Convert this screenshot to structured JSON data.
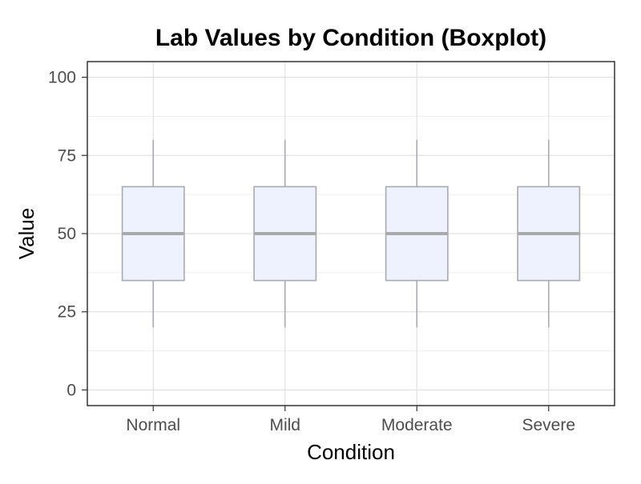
{
  "chart_data": {
    "type": "boxplot",
    "title": "Lab Values by Condition (Boxplot)",
    "xlabel": "Condition",
    "ylabel": "Value",
    "ylim": [
      -5,
      105
    ],
    "yticks": [
      0,
      25,
      50,
      75,
      100
    ],
    "minor_yticks": [
      12.5,
      37.5,
      62.5,
      87.5
    ],
    "grid": true,
    "categories": [
      "Normal",
      "Mild",
      "Moderate",
      "Severe"
    ],
    "boxes": [
      {
        "category": "Normal",
        "whisker_low": 20,
        "q1": 35,
        "median": 50,
        "q3": 65,
        "whisker_high": 80
      },
      {
        "category": "Mild",
        "whisker_low": 20,
        "q1": 35,
        "median": 50,
        "q3": 65,
        "whisker_high": 80
      },
      {
        "category": "Moderate",
        "whisker_low": 20,
        "q1": 35,
        "median": 50,
        "q3": 65,
        "whisker_high": 80
      },
      {
        "category": "Severe",
        "whisker_low": 20,
        "q1": 35,
        "median": 50,
        "q3": 65,
        "whisker_high": 80
      }
    ],
    "colors": {
      "box_fill": "#eef2ff",
      "box_stroke": "#a9a9b1",
      "median": "#aaaaaa",
      "whisker": "#a9a9b1",
      "grid_major": "#dcdcdc",
      "grid_minor": "#eeeeee",
      "panel_border": "#333333",
      "tick_label": "#4d4d4d"
    }
  }
}
